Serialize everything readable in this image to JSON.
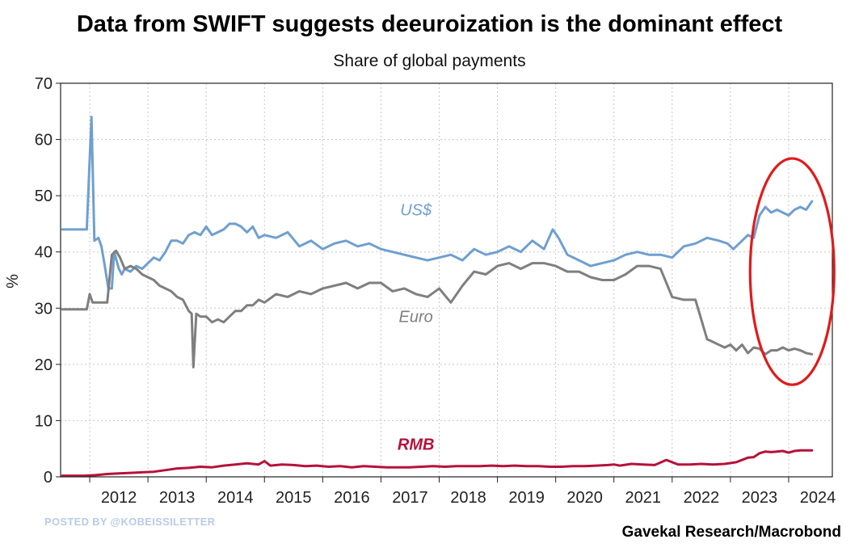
{
  "title": "Data from SWIFT suggests deeuroization is the dominant effect",
  "subtitle": "Share of global payments",
  "watermark": "POSTED BY @KOBEISSILETTER",
  "source": "Gavekal Research/Macrobond",
  "chart_data": {
    "type": "line",
    "ylabel": "%",
    "ylim": [
      0,
      70
    ],
    "yticks": [
      0,
      10,
      20,
      30,
      40,
      50,
      60,
      70
    ],
    "xlim": [
      2011.5,
      2024.75
    ],
    "xticks": [
      "2012",
      "2013",
      "2014",
      "2015",
      "2016",
      "2017",
      "2018",
      "2019",
      "2020",
      "2021",
      "2022",
      "2023",
      "2024"
    ],
    "grid": true,
    "colors": {
      "usd": "#6f9fd0",
      "euro": "#7f7f7f",
      "rmb": "#b5123b",
      "annotation": "#e01b1b"
    },
    "annotation": {
      "type": "ellipse",
      "around": "2023-2024 data",
      "color": "#e01b1b"
    },
    "series": [
      {
        "key": "usd",
        "name": "US$",
        "color": "#6f9fd0",
        "x": [
          2011.53,
          2011.9,
          2011.95,
          2012.03,
          2012.08,
          2012.15,
          2012.2,
          2012.25,
          2012.32,
          2012.38,
          2012.42,
          2012.5,
          2012.55,
          2012.6,
          2012.7,
          2012.8,
          2012.9,
          2013.0,
          2013.1,
          2013.2,
          2013.3,
          2013.4,
          2013.5,
          2013.6,
          2013.7,
          2013.8,
          2013.9,
          2014.0,
          2014.1,
          2014.2,
          2014.3,
          2014.4,
          2014.5,
          2014.6,
          2014.7,
          2014.8,
          2014.9,
          2015.0,
          2015.2,
          2015.4,
          2015.6,
          2015.8,
          2016.0,
          2016.2,
          2016.4,
          2016.6,
          2016.8,
          2017.0,
          2017.2,
          2017.4,
          2017.6,
          2017.8,
          2018.0,
          2018.2,
          2018.4,
          2018.6,
          2018.8,
          2019.0,
          2019.2,
          2019.4,
          2019.6,
          2019.8,
          2019.95,
          2020.05,
          2020.2,
          2020.4,
          2020.6,
          2020.8,
          2021.0,
          2021.2,
          2021.4,
          2021.6,
          2021.8,
          2022.0,
          2022.2,
          2022.4,
          2022.6,
          2022.8,
          2022.95,
          2023.05,
          2023.15,
          2023.2,
          2023.3,
          2023.4,
          2023.5,
          2023.6,
          2023.7,
          2023.8,
          2023.9,
          2024.0,
          2024.1,
          2024.2,
          2024.3,
          2024.4
        ],
        "values": [
          44,
          44,
          44,
          64,
          42,
          42.5,
          41,
          38,
          33.5,
          33.5,
          40,
          37,
          36,
          37,
          36.5,
          37.5,
          37,
          38,
          39,
          38.5,
          40,
          42,
          42,
          41.5,
          43,
          43.5,
          43,
          44.5,
          43,
          43.5,
          44,
          45,
          45,
          44.5,
          43.5,
          44.5,
          42.5,
          43,
          42.5,
          43.5,
          41,
          42,
          40.5,
          41.5,
          42,
          41,
          41.5,
          40.5,
          40,
          39.5,
          39,
          38.5,
          39,
          39.5,
          38.5,
          40.5,
          39.5,
          40,
          41,
          40,
          42,
          40.5,
          44,
          42.5,
          39.5,
          38.5,
          37.5,
          38,
          38.5,
          39.5,
          40,
          39.5,
          39.5,
          39,
          41,
          41.5,
          42.5,
          42,
          41.5,
          40.5,
          41.5,
          42,
          43,
          42.5,
          46.5,
          48,
          47,
          47.5,
          47,
          46.5,
          47.5,
          48,
          47.5,
          49
        ]
      },
      {
        "key": "euro",
        "name": "Euro",
        "color": "#7f7f7f",
        "x": [
          2011.53,
          2011.9,
          2011.95,
          2012.0,
          2012.05,
          2012.15,
          2012.3,
          2012.38,
          2012.45,
          2012.52,
          2012.6,
          2012.7,
          2012.8,
          2012.9,
          2013.0,
          2013.1,
          2013.2,
          2013.3,
          2013.4,
          2013.5,
          2013.6,
          2013.7,
          2013.75,
          2013.78,
          2013.83,
          2013.9,
          2014.0,
          2014.1,
          2014.2,
          2014.3,
          2014.4,
          2014.5,
          2014.6,
          2014.7,
          2014.8,
          2014.9,
          2015.0,
          2015.2,
          2015.4,
          2015.6,
          2015.8,
          2016.0,
          2016.2,
          2016.4,
          2016.6,
          2016.8,
          2017.0,
          2017.2,
          2017.4,
          2017.6,
          2017.8,
          2018.0,
          2018.2,
          2018.4,
          2018.6,
          2018.8,
          2019.0,
          2019.2,
          2019.4,
          2019.6,
          2019.8,
          2020.0,
          2020.2,
          2020.4,
          2020.6,
          2020.8,
          2021.0,
          2021.2,
          2021.4,
          2021.6,
          2021.8,
          2022.0,
          2022.2,
          2022.4,
          2022.6,
          2022.8,
          2022.9,
          2023.0,
          2023.1,
          2023.2,
          2023.3,
          2023.4,
          2023.5,
          2023.6,
          2023.7,
          2023.8,
          2023.9,
          2024.0,
          2024.1,
          2024.2,
          2024.3,
          2024.4
        ],
        "values": [
          29.8,
          29.8,
          29.8,
          32.5,
          31,
          31,
          31,
          39.5,
          40.2,
          39,
          37,
          37.5,
          37,
          36,
          35.5,
          35,
          34,
          33.5,
          33,
          32,
          31.5,
          29.5,
          29,
          19.5,
          29,
          28.5,
          28.5,
          27.5,
          28,
          27.5,
          28.5,
          29.5,
          29.5,
          30.5,
          30.5,
          31.5,
          31,
          32.5,
          32,
          33,
          32.5,
          33.5,
          34,
          34.5,
          33.5,
          34.5,
          34.5,
          33,
          33.5,
          32.5,
          32,
          33.5,
          31,
          34,
          36.5,
          36,
          37.5,
          38,
          37,
          38,
          38,
          37.5,
          36.5,
          36.5,
          35.5,
          35,
          35,
          36,
          37.5,
          37.5,
          37,
          32,
          31.5,
          31.5,
          24.5,
          23.5,
          23,
          23.5,
          22.5,
          23.5,
          22,
          23,
          22.8,
          21.8,
          22.5,
          22.5,
          23,
          22.5,
          22.8,
          22.5,
          22,
          21.8
        ]
      },
      {
        "key": "rmb",
        "name": "RMB",
        "color": "#b5123b",
        "x": [
          2011.53,
          2011.9,
          2012.1,
          2012.3,
          2012.5,
          2012.7,
          2012.9,
          2013.1,
          2013.3,
          2013.5,
          2013.7,
          2013.9,
          2014.1,
          2014.3,
          2014.5,
          2014.7,
          2014.9,
          2015.0,
          2015.1,
          2015.3,
          2015.5,
          2015.7,
          2015.9,
          2016.1,
          2016.3,
          2016.5,
          2016.7,
          2016.9,
          2017.1,
          2017.3,
          2017.5,
          2017.7,
          2017.9,
          2018.1,
          2018.3,
          2018.5,
          2018.7,
          2018.9,
          2019.1,
          2019.3,
          2019.5,
          2019.7,
          2019.9,
          2020.1,
          2020.3,
          2020.5,
          2020.7,
          2020.9,
          2021.0,
          2021.1,
          2021.3,
          2021.5,
          2021.7,
          2021.9,
          2022.1,
          2022.3,
          2022.5,
          2022.7,
          2022.9,
          2023.1,
          2023.3,
          2023.4,
          2023.5,
          2023.6,
          2023.7,
          2023.8,
          2023.9,
          2024.0,
          2024.1,
          2024.2,
          2024.3,
          2024.4
        ],
        "values": [
          0.2,
          0.2,
          0.3,
          0.5,
          0.6,
          0.7,
          0.8,
          0.9,
          1.2,
          1.5,
          1.6,
          1.8,
          1.7,
          2.0,
          2.2,
          2.4,
          2.2,
          2.8,
          2.0,
          2.2,
          2.1,
          1.9,
          2.0,
          1.8,
          1.9,
          1.7,
          1.9,
          1.8,
          1.7,
          1.7,
          1.7,
          1.8,
          1.9,
          1.8,
          1.9,
          1.9,
          1.9,
          2.0,
          1.9,
          2.0,
          1.9,
          1.9,
          1.8,
          1.8,
          1.9,
          1.9,
          2.0,
          2.1,
          2.2,
          2.0,
          2.3,
          2.2,
          2.1,
          3.0,
          2.2,
          2.2,
          2.3,
          2.2,
          2.3,
          2.6,
          3.4,
          3.5,
          4.2,
          4.5,
          4.4,
          4.5,
          4.6,
          4.3,
          4.6,
          4.7,
          4.7,
          4.7
        ]
      }
    ]
  }
}
